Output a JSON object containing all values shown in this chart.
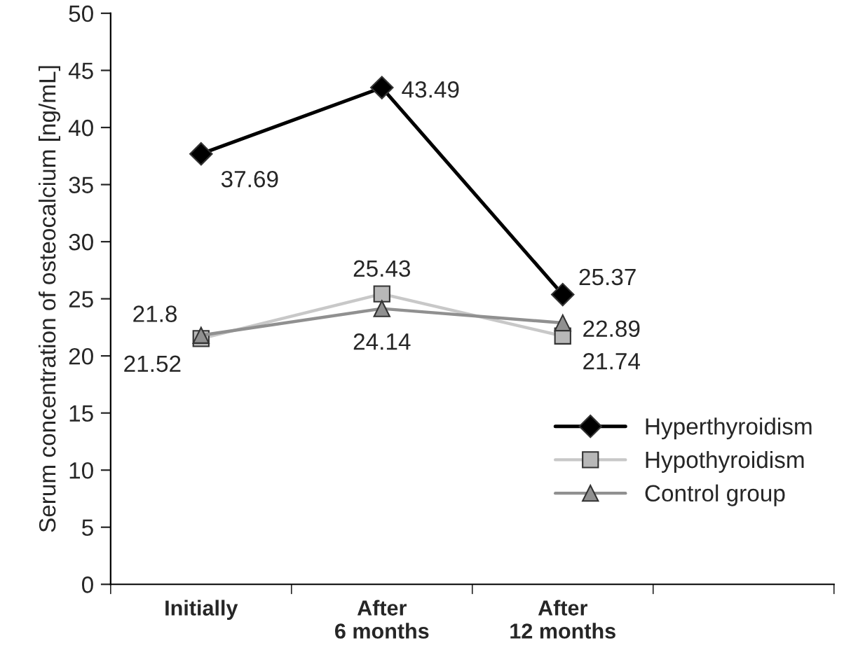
{
  "chart_data": {
    "type": "line",
    "ylabel": "Serum concentration of osteocalcium [ng/mL]",
    "categories": [
      "Initially",
      "After\n6 months",
      "After\n12 months"
    ],
    "series": [
      {
        "name": "Hyperthyroidism",
        "color": "#000000",
        "marker": "diamond",
        "values": [
          37.69,
          43.49,
          25.37
        ]
      },
      {
        "name": "Hypothyroidism",
        "color": "#c8c8c8",
        "marker": "square",
        "values": [
          21.52,
          25.43,
          21.74
        ]
      },
      {
        "name": "Control group",
        "color": "#909090",
        "marker": "triangle",
        "values": [
          21.8,
          24.14,
          22.89
        ]
      }
    ],
    "ylim": [
      0,
      50
    ],
    "yticks": [
      0,
      5,
      10,
      15,
      20,
      25,
      30,
      35,
      40,
      45,
      50
    ],
    "grid": false,
    "legend": "bottom right",
    "data_labels": true,
    "line_style": "solid"
  }
}
